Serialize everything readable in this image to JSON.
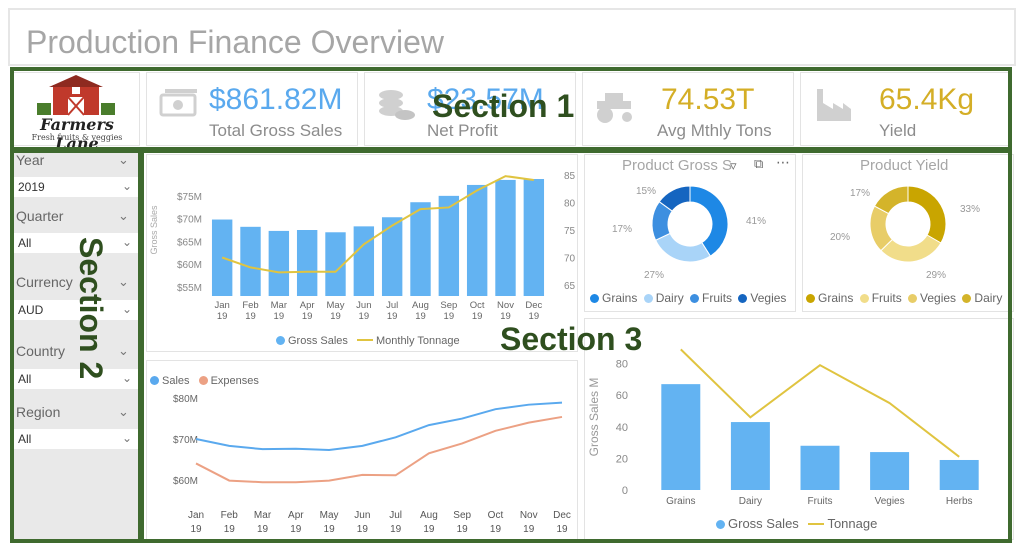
{
  "page": {
    "title": "Production Finance Overview"
  },
  "logo": {
    "name": "Farmers Lane",
    "tagline": "Fresh fruits & veggies"
  },
  "sections": {
    "s1": "Section 1",
    "s2": "Section 2",
    "s3": "Section 3"
  },
  "kpis": [
    {
      "value": "$861.82M",
      "label": "Total Gross Sales",
      "color": "#5aa9ee",
      "icon": "money-icon"
    },
    {
      "value": "$23.57M",
      "label": "Net Profit",
      "color": "#5aa9ee",
      "icon": "coins-icon"
    },
    {
      "value": "74.53T",
      "label": "Avg Mthly Tons",
      "color": "#d4ae26",
      "icon": "tractor-icon"
    },
    {
      "value": "65.4Kg",
      "label": "Yield",
      "color": "#d4ae26",
      "icon": "factory-icon"
    }
  ],
  "filters": [
    {
      "label": "Year",
      "value": "2019"
    },
    {
      "label": "Quarter",
      "value": "All"
    },
    {
      "label": "Currency",
      "value": "AUD"
    },
    {
      "label": "Country",
      "value": "All"
    },
    {
      "label": "Region",
      "value": "All"
    }
  ],
  "colors": {
    "blue": "#63b3f2",
    "gold": "#e0c440",
    "salmon": "#eca184",
    "lightblue": "#5aa9ee"
  },
  "chart_data": [
    {
      "type": "bar",
      "id": "monthly",
      "categories": [
        "Jan 19",
        "Feb 19",
        "Mar 19",
        "Apr 19",
        "May 19",
        "Jun 19",
        "Jul 19",
        "Aug 19",
        "Sep 19",
        "Oct 19",
        "Nov 19",
        "Dec 19"
      ],
      "series": [
        {
          "name": "Gross Sales",
          "type": "bar",
          "values": [
            69.8,
            68.2,
            67.3,
            67.5,
            67.0,
            68.3,
            70.3,
            73.6,
            75.0,
            77.4,
            78.5,
            78.7
          ]
        },
        {
          "name": "Monthly Tonnage",
          "type": "line",
          "values": [
            70,
            68.2,
            67.3,
            67.4,
            67.4,
            72.4,
            75.8,
            78.8,
            79.1,
            82.2,
            84.8,
            84.1
          ]
        }
      ],
      "ylabel": "Gross Sales",
      "yticks": [
        "$55M",
        "$60M",
        "$65M",
        "$70M",
        "$75M"
      ],
      "ylim": [
        53,
        82
      ],
      "y2ticks": [
        "65",
        "70",
        "75",
        "80",
        "85"
      ],
      "y2lim": [
        63,
        87
      ],
      "legend": "bottom"
    },
    {
      "type": "line",
      "id": "sales_expenses",
      "categories": [
        "Jan 19",
        "Feb 19",
        "Mar 19",
        "Apr 19",
        "May 19",
        "Jun 19",
        "Jul 19",
        "Aug 19",
        "Sep 19",
        "Oct 19",
        "Nov 19",
        "Dec 19"
      ],
      "series": [
        {
          "name": "Sales",
          "values": [
            70,
            68.3,
            67.5,
            67.6,
            67.3,
            68.3,
            70.4,
            73.4,
            75.0,
            77.3,
            78.4,
            78.9
          ]
        },
        {
          "name": "Expenses",
          "values": [
            64,
            59.8,
            59.4,
            59.4,
            59.8,
            61.2,
            61.1,
            66.5,
            68.9,
            72.0,
            74.0,
            75.4
          ]
        }
      ],
      "yticks": [
        "$60M",
        "$70M",
        "$80M"
      ],
      "ylim": [
        57,
        82
      ],
      "legend": "top-left"
    },
    {
      "type": "pie",
      "id": "product_gross_sales",
      "title": "Product Gross S",
      "slices": [
        {
          "name": "Grains",
          "value": 41
        },
        {
          "name": "Dairy",
          "value": 27
        },
        {
          "name": "Fruits",
          "value": 17
        },
        {
          "name": "Vegies",
          "value": 15
        }
      ],
      "labels": [
        "41%",
        "27%",
        "17%",
        "15%"
      ],
      "legend": "bottom"
    },
    {
      "type": "pie",
      "id": "product_yield",
      "title": "Product Yield",
      "slices": [
        {
          "name": "Grains",
          "value": 33
        },
        {
          "name": "Fruits",
          "value": 29
        },
        {
          "name": "Vegies",
          "value": 20
        },
        {
          "name": "Dairy",
          "value": 17
        }
      ],
      "labels": [
        "33%",
        "29%",
        "20%",
        "17%"
      ],
      "legend": "bottom"
    },
    {
      "type": "bar",
      "id": "product_sales",
      "categories": [
        "Grains",
        "Dairy",
        "Fruits",
        "Vegies",
        "Herbs"
      ],
      "series": [
        {
          "name": "Gross Sales",
          "type": "bar",
          "values": [
            67,
            43,
            28,
            24,
            19
          ]
        },
        {
          "name": "Tonnage",
          "type": "line",
          "values": [
            89,
            46,
            79,
            55,
            21
          ]
        }
      ],
      "ylabel": "Gross Sales M",
      "yticks": [
        "0",
        "20",
        "40",
        "60",
        "80"
      ],
      "ylim": [
        0,
        100
      ],
      "legend": "bottom"
    }
  ]
}
